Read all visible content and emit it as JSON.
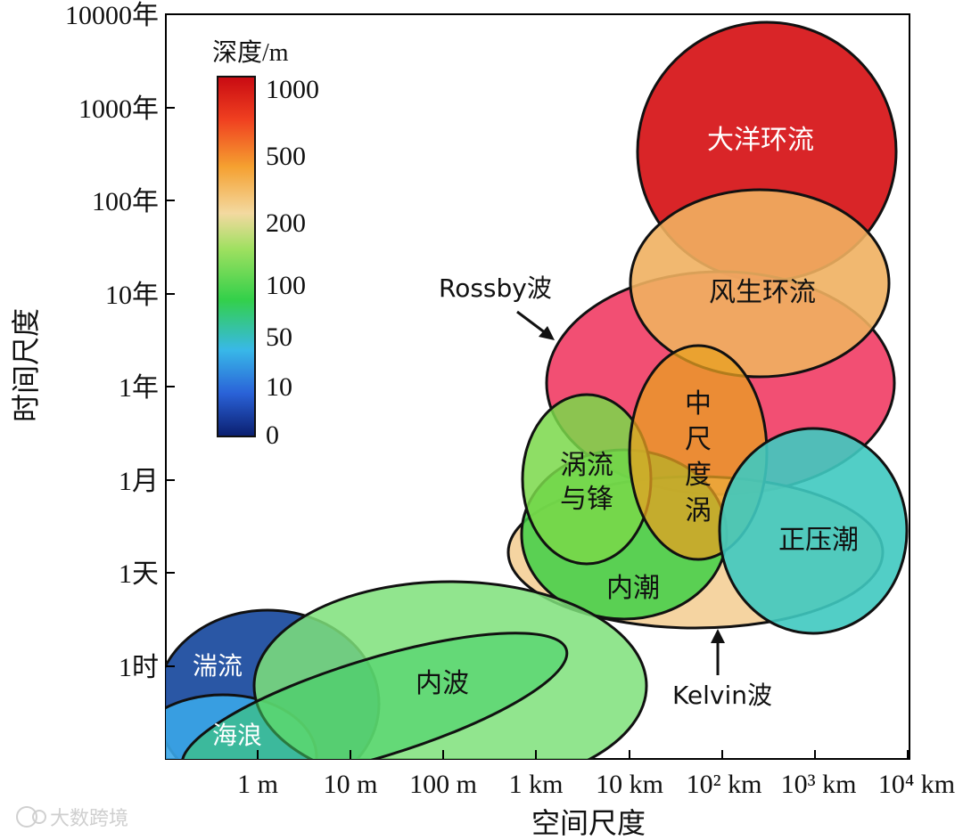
{
  "axes": {
    "x_title": "空间尺度",
    "y_title": "时间尺度",
    "x_ticks": [
      "1 m",
      "10 m",
      "100 m",
      "1 km",
      "10 km",
      "10² km",
      "10³ km",
      "10⁴ km"
    ],
    "y_ticks": [
      "10000年",
      "1000年",
      "100年",
      "10年",
      "1年",
      "1月",
      "1天",
      "1时"
    ]
  },
  "colorbar": {
    "title": "深度/m",
    "labels": [
      "1000",
      "500",
      "200",
      "100",
      "50",
      "10",
      "0"
    ]
  },
  "regions": {
    "ocean_circulation": {
      "label": "大洋环流",
      "color": "#d7191c"
    },
    "wind_circulation": {
      "label": "风生环流",
      "color": "#f0b060"
    },
    "rossby_wave": {
      "label": "Rossby波",
      "color": "#f0305a"
    },
    "mesoscale_eddy": {
      "label": "中尺度涡",
      "color": "#e8a020"
    },
    "eddy_front": {
      "label": "涡流与锋",
      "color": "#7ad84a"
    },
    "internal_tide": {
      "label": "内潮",
      "color": "#3ecf45"
    },
    "barotropic_tide": {
      "label": "正压潮",
      "color": "#3fc9c0"
    },
    "kelvin_wave": {
      "label": "Kelvin波",
      "color": "#f3c98a"
    },
    "internal_wave": {
      "label": "内波",
      "color": "#7ee07a"
    },
    "turbulence": {
      "label": "湍流",
      "color": "#1f4ea0"
    },
    "sea_wave": {
      "label": "海浪",
      "color": "#3aa6e8"
    }
  },
  "watermark": "大数跨境"
}
